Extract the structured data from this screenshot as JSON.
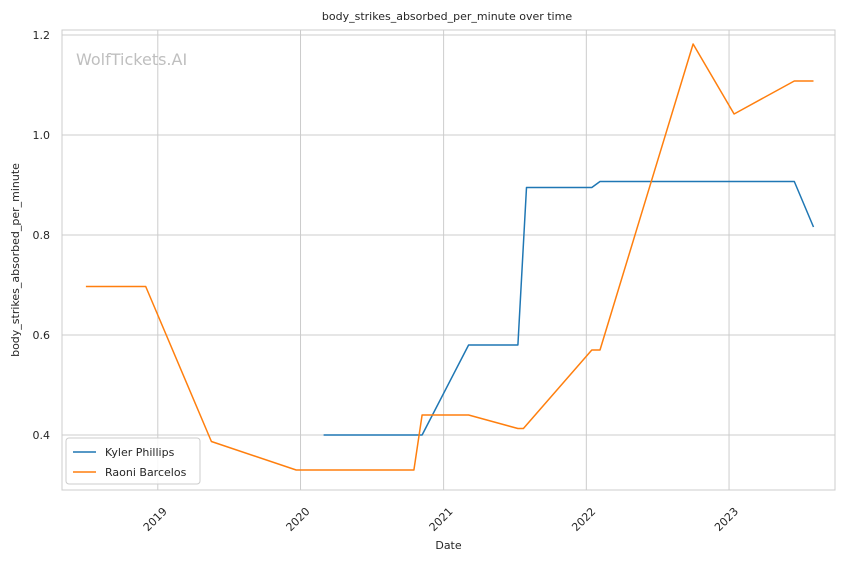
{
  "chart_data": {
    "type": "line",
    "title": "body_strikes_absorbed_per_minute over time",
    "xlabel": "Date",
    "ylabel": "body_strikes_absorbed_per_minute",
    "watermark": "WolfTickets.AI",
    "xlim": [
      "2018-05-01",
      "2023-09-29"
    ],
    "ylim": [
      0.29,
      1.21
    ],
    "x_ticks": [
      {
        "date": "2019-01-01",
        "label": "2019"
      },
      {
        "date": "2020-01-01",
        "label": "2020"
      },
      {
        "date": "2021-01-01",
        "label": "2021"
      },
      {
        "date": "2022-01-01",
        "label": "2022"
      },
      {
        "date": "2023-01-01",
        "label": "2023"
      }
    ],
    "y_ticks": [
      0.4,
      0.6,
      0.8,
      1.0,
      1.2
    ],
    "y_tick_labels": [
      "0.4",
      "0.6",
      "0.8",
      "1.0",
      "1.2"
    ],
    "grid": true,
    "legend_position": "lower-left",
    "series": [
      {
        "name": "Kyler Phillips",
        "color": "#1f77b4",
        "points": [
          {
            "x": "2020-02-29",
            "y": 0.4
          },
          {
            "x": "2020-11-07",
            "y": 0.4
          },
          {
            "x": "2021-03-06",
            "y": 0.58
          },
          {
            "x": "2021-07-10",
            "y": 0.58
          },
          {
            "x": "2021-08-01",
            "y": 0.895
          },
          {
            "x": "2022-01-15",
            "y": 0.895
          },
          {
            "x": "2022-02-05",
            "y": 0.907
          },
          {
            "x": "2023-06-17",
            "y": 0.907
          },
          {
            "x": "2023-08-05",
            "y": 0.816
          }
        ]
      },
      {
        "name": "Raoni Barcelos",
        "color": "#ff7f0e",
        "points": [
          {
            "x": "2018-07-01",
            "y": 0.697
          },
          {
            "x": "2018-12-01",
            "y": 0.697
          },
          {
            "x": "2019-05-18",
            "y": 0.387
          },
          {
            "x": "2019-12-21",
            "y": 0.33
          },
          {
            "x": "2020-10-17",
            "y": 0.33
          },
          {
            "x": "2020-11-07",
            "y": 0.44
          },
          {
            "x": "2021-03-06",
            "y": 0.44
          },
          {
            "x": "2021-07-10",
            "y": 0.413
          },
          {
            "x": "2021-07-24",
            "y": 0.413
          },
          {
            "x": "2022-01-15",
            "y": 0.57
          },
          {
            "x": "2022-02-05",
            "y": 0.57
          },
          {
            "x": "2022-10-01",
            "y": 1.182
          },
          {
            "x": "2023-01-14",
            "y": 1.042
          },
          {
            "x": "2023-06-17",
            "y": 1.108
          },
          {
            "x": "2023-08-05",
            "y": 1.108
          }
        ]
      }
    ]
  }
}
